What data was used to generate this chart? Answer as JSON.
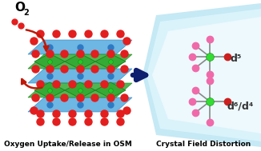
{
  "bg_color": "#ffffff",
  "arrow_big_color": "#0d1f6e",
  "title_left": "Oxygen Uptake/Release in OSM",
  "title_right": "Crystal Field Distortion",
  "title_fontsize": 6.5,
  "d5_label": "d⁵",
  "d64_label": "d⁶/d⁴",
  "osm_blue_layer_color": "#55aadf",
  "osm_blue_dot_color": "#2d7ac4",
  "osm_red_dot_color": "#e31e1e",
  "osm_green_poly_color": "#33aa33",
  "osm_green_center_color": "#22cc22",
  "pink_color": "#f06aaa",
  "red_ligand_color": "#cc1f1f",
  "green_center_color": "#33dd33",
  "bond_color": "#888888",
  "double_arrow_color": "#111111",
  "right_bg_color1": "#c5e9f5",
  "right_bg_color2": "#daf3fb",
  "right_bg_color3": "#edf9fd"
}
